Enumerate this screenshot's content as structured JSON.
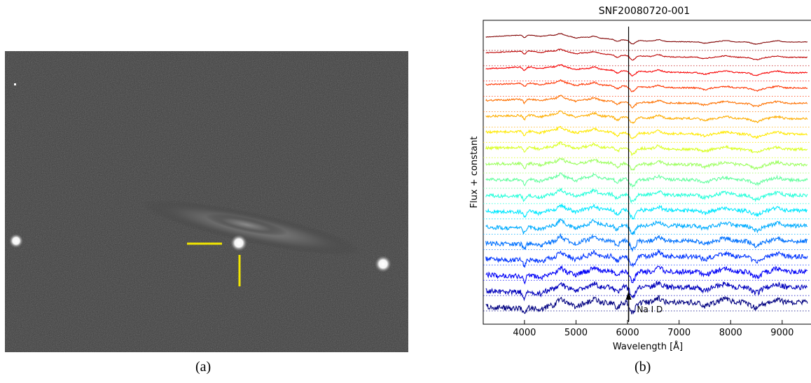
{
  "figure": {
    "panel_a": {
      "caption": "(a)",
      "image_description_colors": {
        "background": "#3d3d3d",
        "marker": "#f2e600"
      }
    },
    "panel_b": {
      "caption": "(b)"
    }
  },
  "chart_data": {
    "type": "line",
    "title": "SNF20080720-001",
    "xlabel": "Wavelength [Å]",
    "ylabel": "Flux + constant",
    "xlim": [
      3200,
      9600
    ],
    "xticks": [
      4000,
      5000,
      6000,
      7000,
      8000,
      9000
    ],
    "xtick_labels": [
      "4000",
      "5000",
      "6000",
      "7000",
      "8000",
      "9000"
    ],
    "annotation": {
      "text": "Na I D",
      "x": 6020
    },
    "n_spectra": 18,
    "colormap": "jet (dark blue top to dark red bottom)",
    "grid": false
  }
}
